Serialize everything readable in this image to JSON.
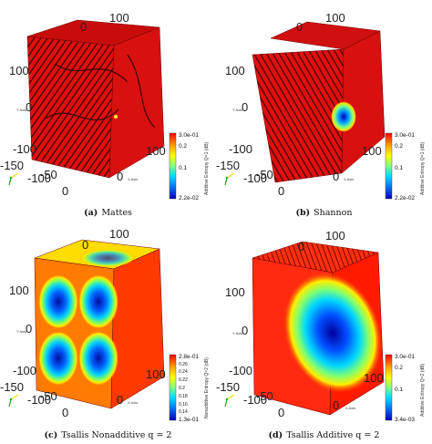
{
  "figure": {
    "panels": [
      {
        "id": "a",
        "tag": "(a)",
        "caption": "Mattes",
        "ticks": {
          "t1": "100",
          "t2": "0",
          "t3": "100",
          "t4": "0",
          "t5": "-100",
          "t6": "-150",
          "t7": "-100",
          "t8": "-50",
          "t9": "0",
          "t10": "100",
          "t11": "0"
        },
        "axis_small": {
          "y": "Y Axis",
          "x": "X Axis"
        },
        "colorbar": {
          "max": "3.0e-01",
          "min": "2.2e-02",
          "labels": [
            "0.2",
            "0.1"
          ],
          "title": "Additive Entropy Q=1 (dB)"
        },
        "colors": {
          "body": "#e01010",
          "stripes": "#3a0505"
        }
      },
      {
        "id": "b",
        "tag": "(b)",
        "caption": "Shannon",
        "ticks": {
          "t1": "100",
          "t2": "0",
          "t3": "100",
          "t4": "0",
          "t5": "-100",
          "t6": "-150",
          "t7": "-100",
          "t8": "-50",
          "t9": "0",
          "t10": "100",
          "t11": "0"
        },
        "axis_small": {
          "y": "Y Axis",
          "x": "X Axis"
        },
        "colorbar": {
          "max": "3.0e-01",
          "min": "2.2e-02",
          "labels": [
            "0.2",
            "0.1"
          ],
          "title": "Additive Entropy Q=1 (dB)"
        },
        "colors": {
          "body": "#e01010",
          "stripes": "#3a0505"
        }
      },
      {
        "id": "c",
        "tag": "(c)",
        "caption": "Tsallis Nonadditive q = 2",
        "ticks": {
          "t1": "100",
          "t2": "0",
          "t3": "100",
          "t4": "0",
          "t5": "-100",
          "t6": "-150",
          "t7": "-100",
          "t8": "-50",
          "t9": "0",
          "t10": "100",
          "t11": "0"
        },
        "axis_small": {
          "y": "Y Axis",
          "x": "X Axis"
        },
        "colorbar": {
          "max": "2.8e-01",
          "min": "1.3e-01",
          "labels": [
            "0.26",
            "0.24",
            "0.22",
            "0.2",
            "0.18",
            "0.16",
            "0.14"
          ],
          "title": "Nonadditive Entropy Q=2 (dB)"
        },
        "colors": {
          "body": "#ff6a00",
          "stripes": "#3a0505"
        }
      },
      {
        "id": "d",
        "tag": "(d)",
        "caption": "Tsallis Additive q = 2",
        "ticks": {
          "t1": "100",
          "t2": "0",
          "t3": "100",
          "t4": "0",
          "t5": "-100",
          "t6": "-150",
          "t7": "-100",
          "t8": "-50",
          "t9": "0",
          "t10": "100",
          "t11": "0"
        },
        "axis_small": {
          "y": "Y Axis",
          "x": "X Axis"
        },
        "colorbar": {
          "max": "3.0e-01",
          "min": "3.4e-03",
          "labels": [
            "0.2",
            "0.1"
          ],
          "title": "Additive Entropy Q=2 (dB)"
        },
        "colors": {
          "body": "#e81408",
          "stripes": "#3a0505"
        }
      }
    ],
    "colormap": [
      "#ff0000",
      "#ffaa00",
      "#ffff00",
      "#80ff80",
      "#00e0ff",
      "#0080ff",
      "#0000c0"
    ]
  }
}
